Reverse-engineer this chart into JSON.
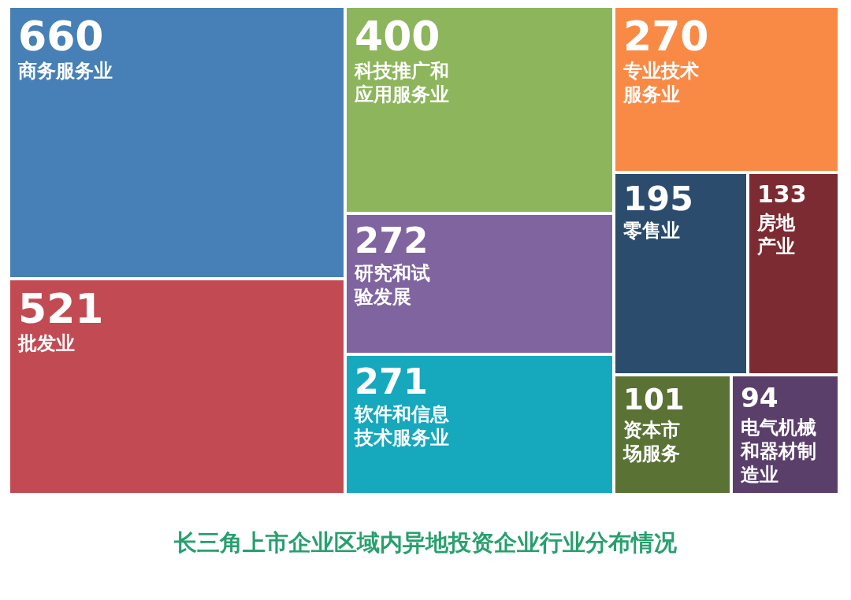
{
  "chart_data": {
    "type": "other",
    "title": "长三角上市企业区域内异地投资企业行业分布情况",
    "categories": [
      "商务服务业",
      "批发业",
      "科技推广和应用服务业",
      "研究和试验发展",
      "软件和信息技术服务业",
      "专业技术服务业",
      "零售业",
      "房地产业",
      "资本市场服务",
      "电气机械和器材制造业"
    ],
    "values": [
      660,
      521,
      400,
      272,
      271,
      270,
      195,
      133,
      101,
      94
    ],
    "colors": [
      "#4680b6",
      "#c24b53",
      "#8db55b",
      "#7f64a0",
      "#16a8bd",
      "#f98a46",
      "#2c4c6e",
      "#7b2b31",
      "#5b7235",
      "#5a3f6b"
    ],
    "data_labels": true
  }
}
